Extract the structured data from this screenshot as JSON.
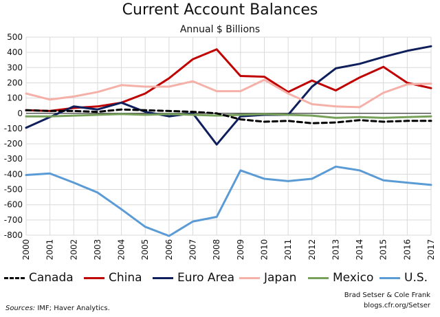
{
  "chart_data": {
    "type": "line",
    "title": "Current Account Balances",
    "subtitle": "Annual $ Billions",
    "ylim": [
      -800,
      500
    ],
    "yticks": [
      "500",
      "400",
      "300",
      "200",
      "100",
      "0",
      "-100",
      "-200",
      "-300",
      "-400",
      "-500",
      "-600",
      "-700",
      "-800"
    ],
    "categories": [
      "2000",
      "2001",
      "2002",
      "2003",
      "2004",
      "2005",
      "2006",
      "2007",
      "2008",
      "2009",
      "2010",
      "2011",
      "2012",
      "2013",
      "2014",
      "2015",
      "2016",
      "2017"
    ],
    "grid": true,
    "legend_position": "bottom",
    "series": [
      {
        "name": "Canada",
        "color": "#000000",
        "dashed": true,
        "values": [
          20,
          15,
          15,
          10,
          25,
          20,
          15,
          10,
          0,
          -40,
          -55,
          -50,
          -65,
          -60,
          -45,
          -55,
          -50,
          -50
        ]
      },
      {
        "name": "China",
        "color": "#c00000",
        "dashed": false,
        "values": [
          20,
          15,
          35,
          45,
          70,
          130,
          230,
          355,
          420,
          245,
          240,
          140,
          215,
          150,
          235,
          305,
          200,
          165
        ]
      },
      {
        "name": "Euro Area",
        "color": "#0f1f5c",
        "dashed": false,
        "values": [
          -95,
          -25,
          45,
          25,
          70,
          10,
          -20,
          0,
          -205,
          -20,
          -10,
          -10,
          175,
          295,
          325,
          370,
          410,
          440
        ]
      },
      {
        "name": "Japan",
        "color": "#f5b0a8",
        "dashed": false,
        "values": [
          130,
          90,
          110,
          140,
          185,
          175,
          175,
          210,
          145,
          145,
          220,
          130,
          60,
          45,
          40,
          135,
          190,
          195
        ]
      },
      {
        "name": "Mexico",
        "color": "#77a15a",
        "dashed": false,
        "values": [
          -20,
          -20,
          -15,
          -10,
          -5,
          -10,
          -5,
          -10,
          -15,
          -10,
          -5,
          -10,
          -15,
          -30,
          -25,
          -30,
          -25,
          -20
        ]
      },
      {
        "name": "U.S.",
        "color": "#5b9bd5",
        "dashed": false,
        "values": [
          -405,
          -395,
          -455,
          -520,
          -630,
          -745,
          -805,
          -710,
          -680,
          -375,
          -430,
          -445,
          -430,
          -350,
          -375,
          -440,
          -455,
          -470
        ]
      }
    ]
  },
  "footer": {
    "credit_line1": "Brad Setser & Cole Frank",
    "credit_line2": "blogs.cfr.org/Setser",
    "sources_label": "Sources:",
    "sources_text": " IMF; Haver Analytics."
  }
}
